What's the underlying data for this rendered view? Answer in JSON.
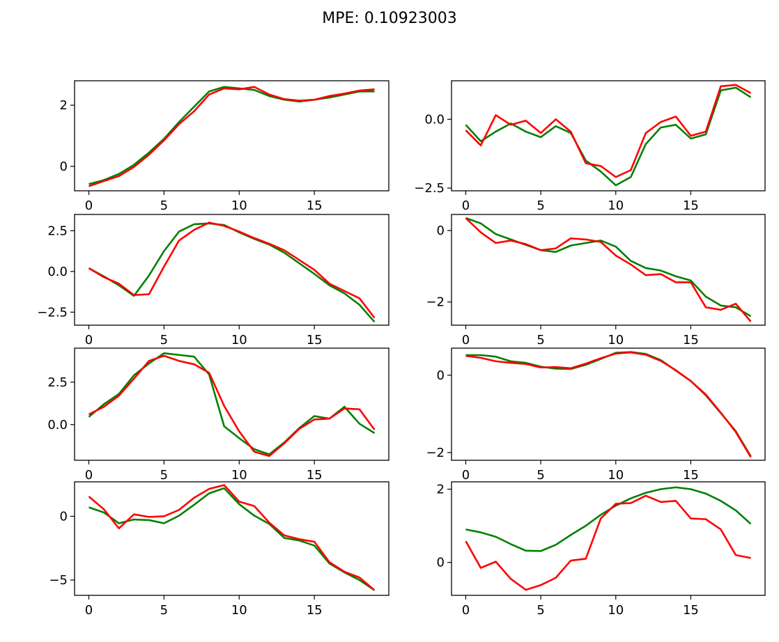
{
  "chart_data": {
    "type": "line",
    "title": "MPE: 0.10923003",
    "layout": "4x2 grid of subplots",
    "series_colors": {
      "series_1": "#008000",
      "series_2": "#ff0000"
    },
    "x": [
      0,
      1,
      2,
      3,
      4,
      5,
      6,
      7,
      8,
      9,
      10,
      11,
      12,
      13,
      14,
      15,
      16,
      17,
      18,
      19
    ],
    "subplots": [
      {
        "xlim": [
          -0.95,
          19.95
        ],
        "ylim": [
          -0.8,
          2.8
        ],
        "xticks": [
          0,
          5,
          10,
          15
        ],
        "yticks": [
          0,
          2
        ],
        "ytick_labels": [
          "0",
          "2"
        ],
        "series": [
          {
            "color": "#008000",
            "values": [
              -0.58,
              -0.45,
              -0.25,
              0.05,
              0.45,
              0.9,
              1.45,
              1.95,
              2.45,
              2.6,
              2.55,
              2.5,
              2.3,
              2.18,
              2.12,
              2.18,
              2.25,
              2.35,
              2.45,
              2.45
            ]
          },
          {
            "color": "#ff0000",
            "values": [
              -0.65,
              -0.48,
              -0.32,
              -0.02,
              0.38,
              0.85,
              1.38,
              1.8,
              2.35,
              2.55,
              2.52,
              2.6,
              2.35,
              2.2,
              2.15,
              2.18,
              2.3,
              2.38,
              2.48,
              2.52
            ]
          }
        ]
      },
      {
        "xlim": [
          -0.95,
          19.95
        ],
        "ylim": [
          -2.6,
          1.4
        ],
        "xticks": [
          0,
          5,
          10,
          15
        ],
        "yticks": [
          0,
          -2.5
        ],
        "ytick_labels": [
          "0.0",
          "−2.5"
        ],
        "series": [
          {
            "color": "#008000",
            "values": [
              -0.2,
              -0.8,
              -0.45,
              -0.15,
              -0.45,
              -0.65,
              -0.25,
              -0.5,
              -1.5,
              -1.9,
              -2.4,
              -2.1,
              -0.9,
              -0.3,
              -0.2,
              -0.7,
              -0.55,
              1.05,
              1.15,
              0.8
            ]
          },
          {
            "color": "#ff0000",
            "values": [
              -0.4,
              -0.95,
              0.15,
              -0.2,
              -0.05,
              -0.5,
              0.0,
              -0.45,
              -1.6,
              -1.7,
              -2.1,
              -1.85,
              -0.5,
              -0.1,
              0.1,
              -0.6,
              -0.45,
              1.2,
              1.25,
              0.95
            ]
          }
        ]
      },
      {
        "xlim": [
          -0.95,
          19.95
        ],
        "ylim": [
          -3.3,
          3.5
        ],
        "xticks": [
          0,
          5,
          10,
          15
        ],
        "yticks": [
          2.5,
          0,
          -2.5
        ],
        "ytick_labels": [
          "2.5",
          "0.0",
          "−2.5"
        ],
        "series": [
          {
            "color": "#008000",
            "values": [
              0.2,
              -0.3,
              -0.85,
              -1.5,
              -0.25,
              1.25,
              2.45,
              2.9,
              2.95,
              2.85,
              2.4,
              2.0,
              1.65,
              1.15,
              0.5,
              -0.15,
              -0.85,
              -1.35,
              -2.05,
              -3.1
            ]
          },
          {
            "color": "#ff0000",
            "values": [
              0.2,
              -0.35,
              -0.75,
              -1.45,
              -1.4,
              0.3,
              1.9,
              2.55,
              3.0,
              2.8,
              2.45,
              2.05,
              1.7,
              1.3,
              0.7,
              0.1,
              -0.75,
              -1.2,
              -1.65,
              -2.85
            ]
          }
        ]
      },
      {
        "xlim": [
          -0.95,
          19.95
        ],
        "ylim": [
          -2.65,
          0.45
        ],
        "xticks": [
          0,
          5,
          10,
          15
        ],
        "yticks": [
          0,
          -2
        ],
        "ytick_labels": [
          "0",
          "−2"
        ],
        "series": [
          {
            "color": "#008000",
            "values": [
              0.35,
              0.2,
              -0.1,
              -0.25,
              -0.4,
              -0.55,
              -0.6,
              -0.42,
              -0.35,
              -0.28,
              -0.45,
              -0.85,
              -1.05,
              -1.12,
              -1.28,
              -1.4,
              -1.85,
              -2.1,
              -2.15,
              -2.4
            ]
          },
          {
            "color": "#ff0000",
            "values": [
              0.35,
              -0.05,
              -0.35,
              -0.28,
              -0.38,
              -0.55,
              -0.5,
              -0.22,
              -0.25,
              -0.32,
              -0.7,
              -0.95,
              -1.25,
              -1.22,
              -1.45,
              -1.45,
              -2.15,
              -2.22,
              -2.05,
              -2.55
            ]
          }
        ]
      },
      {
        "xlim": [
          -0.95,
          19.95
        ],
        "ylim": [
          -2.1,
          4.5
        ],
        "xticks": [
          0,
          5,
          10,
          15
        ],
        "yticks": [
          2.5,
          0
        ],
        "ytick_labels": [
          "2.5",
          "0.0"
        ],
        "series": [
          {
            "color": "#008000",
            "values": [
              0.45,
              1.2,
              1.8,
              2.9,
              3.6,
              4.2,
              4.1,
              4.0,
              2.95,
              -0.1,
              -0.8,
              -1.45,
              -1.75,
              -1.05,
              -0.2,
              0.5,
              0.35,
              1.05,
              0.05,
              -0.5
            ]
          },
          {
            "color": "#ff0000",
            "values": [
              0.6,
              1.05,
              1.7,
              2.7,
              3.75,
              4.05,
              3.75,
              3.55,
              3.05,
              1.1,
              -0.4,
              -1.6,
              -1.85,
              -1.1,
              -0.25,
              0.3,
              0.35,
              0.95,
              0.9,
              -0.3
            ]
          }
        ]
      },
      {
        "xlim": [
          -0.95,
          19.95
        ],
        "ylim": [
          -2.2,
          0.7
        ],
        "xticks": [
          0,
          5,
          10,
          15
        ],
        "yticks": [
          0,
          -2
        ],
        "ytick_labels": [
          "0",
          "−2"
        ],
        "series": [
          {
            "color": "#008000",
            "values": [
              0.52,
              0.52,
              0.48,
              0.36,
              0.32,
              0.22,
              0.17,
              0.16,
              0.27,
              0.42,
              0.58,
              0.6,
              0.55,
              0.39,
              0.12,
              -0.15,
              -0.52,
              -0.98,
              -1.45,
              -2.1
            ]
          },
          {
            "color": "#ff0000",
            "values": [
              0.5,
              0.45,
              0.36,
              0.32,
              0.29,
              0.2,
              0.21,
              0.18,
              0.3,
              0.44,
              0.56,
              0.59,
              0.53,
              0.37,
              0.13,
              -0.15,
              -0.5,
              -0.97,
              -1.47,
              -2.12
            ]
          }
        ]
      },
      {
        "xlim": [
          -0.95,
          19.95
        ],
        "ylim": [
          -6.2,
          2.7
        ],
        "xticks": [
          0,
          5,
          10,
          15
        ],
        "xtick_labels": [
          "0",
          "5",
          "10",
          "15"
        ],
        "yticks": [
          0,
          -5
        ],
        "ytick_labels": [
          "0",
          "−5"
        ],
        "series": [
          {
            "color": "#008000",
            "values": [
              0.7,
              0.3,
              -0.55,
              -0.25,
              -0.3,
              -0.55,
              0.05,
              0.9,
              1.8,
              2.2,
              0.95,
              0.05,
              -0.6,
              -1.7,
              -1.9,
              -2.3,
              -3.7,
              -4.4,
              -5.0,
              -5.8
            ]
          },
          {
            "color": "#ff0000",
            "values": [
              1.55,
              0.55,
              -0.95,
              0.15,
              -0.05,
              0.0,
              0.5,
              1.45,
              2.15,
              2.45,
              1.15,
              0.8,
              -0.5,
              -1.5,
              -1.8,
              -2.0,
              -3.6,
              -4.35,
              -4.8,
              -5.8
            ]
          }
        ]
      },
      {
        "xlim": [
          -0.95,
          19.95
        ],
        "ylim": [
          -0.9,
          2.2
        ],
        "xticks": [
          0,
          5,
          10,
          15
        ],
        "xtick_labels": [
          "0",
          "5",
          "10",
          "15"
        ],
        "yticks": [
          0,
          2
        ],
        "ytick_labels": [
          "0",
          "2"
        ],
        "series": [
          {
            "color": "#008000",
            "values": [
              0.9,
              0.82,
              0.7,
              0.5,
              0.32,
              0.31,
              0.48,
              0.75,
              1.0,
              1.3,
              1.55,
              1.75,
              1.9,
              2.0,
              2.05,
              2.0,
              1.88,
              1.68,
              1.42,
              1.05
            ]
          },
          {
            "color": "#ff0000",
            "values": [
              0.58,
              -0.15,
              0.02,
              -0.45,
              -0.75,
              -0.62,
              -0.42,
              0.05,
              0.1,
              1.2,
              1.6,
              1.62,
              1.82,
              1.65,
              1.68,
              1.2,
              1.18,
              0.9,
              0.2,
              0.12
            ]
          }
        ]
      }
    ]
  }
}
